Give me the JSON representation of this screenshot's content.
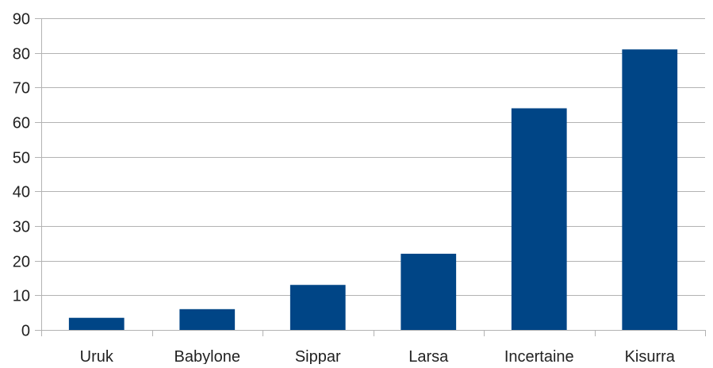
{
  "chart_data": {
    "type": "bar",
    "title": "",
    "xlabel": "",
    "ylabel": "",
    "categories": [
      "Uruk",
      "Babylone",
      "Sippar",
      "Larsa",
      "Incertaine",
      "Kisurra"
    ],
    "values": [
      3.5,
      6,
      13,
      22,
      64,
      81
    ],
    "ylim": [
      0,
      90
    ],
    "yticks": [
      "0",
      "10",
      "20",
      "30",
      "40",
      "50",
      "60",
      "70",
      "80",
      "90"
    ],
    "grid": true,
    "legend": "none",
    "bar_color": "#004586",
    "grid_color": "#b3b3b3"
  }
}
